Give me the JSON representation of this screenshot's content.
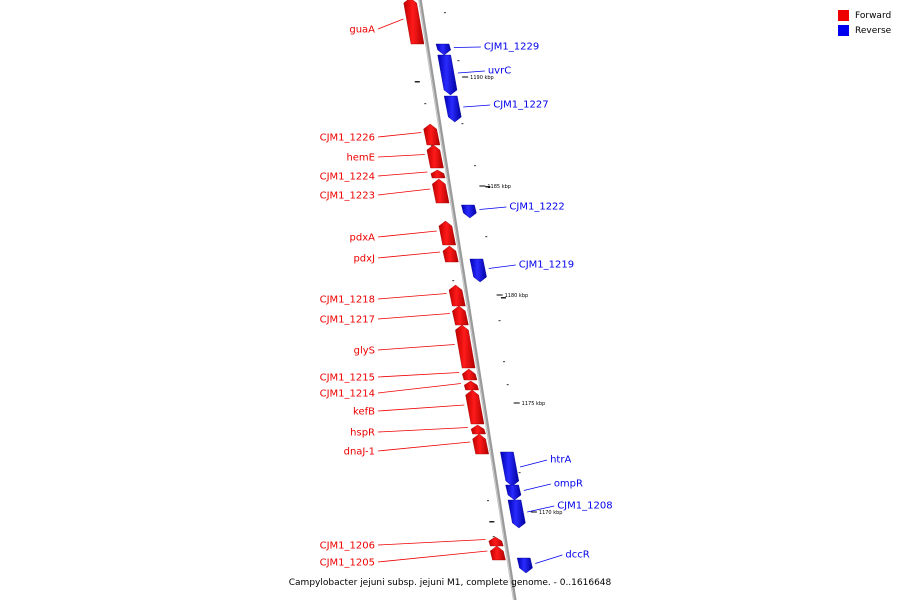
{
  "colors": {
    "forward": "#ee0000",
    "reverse": "#0000ee",
    "axis": "#999999"
  },
  "legend": [
    {
      "label": "Forward",
      "color": "#ee0000"
    },
    {
      "label": "Reverse",
      "color": "#0000ee"
    }
  ],
  "caption": "Campylobacter jejuni subsp. jejuni M1, complete genome. - 0..1616648",
  "ticks": [
    "1190 kbp",
    "1185 kbp",
    "1180 kbp",
    "1175 kbp",
    "1170 kbp"
  ],
  "genes": [
    {
      "name": "guaA",
      "strand": "forward"
    },
    {
      "name": "CJM1_1229",
      "strand": "reverse"
    },
    {
      "name": "uvrC",
      "strand": "reverse"
    },
    {
      "name": "CJM1_1227",
      "strand": "reverse"
    },
    {
      "name": "CJM1_1226",
      "strand": "forward"
    },
    {
      "name": "hemE",
      "strand": "forward"
    },
    {
      "name": "CJM1_1224",
      "strand": "forward"
    },
    {
      "name": "CJM1_1223",
      "strand": "forward"
    },
    {
      "name": "CJM1_1222",
      "strand": "reverse"
    },
    {
      "name": "pdxA",
      "strand": "forward"
    },
    {
      "name": "pdxJ",
      "strand": "forward"
    },
    {
      "name": "CJM1_1219",
      "strand": "reverse"
    },
    {
      "name": "CJM1_1218",
      "strand": "forward"
    },
    {
      "name": "CJM1_1217",
      "strand": "forward"
    },
    {
      "name": "glyS",
      "strand": "forward"
    },
    {
      "name": "CJM1_1215",
      "strand": "forward"
    },
    {
      "name": "CJM1_1214",
      "strand": "forward"
    },
    {
      "name": "kefB",
      "strand": "forward"
    },
    {
      "name": "hspR",
      "strand": "forward"
    },
    {
      "name": "dnaJ-1",
      "strand": "forward"
    },
    {
      "name": "htrA",
      "strand": "reverse"
    },
    {
      "name": "ompR",
      "strand": "reverse"
    },
    {
      "name": "CJM1_1208",
      "strand": "reverse"
    },
    {
      "name": "CJM1_1206",
      "strand": "forward"
    },
    {
      "name": "CJM1_1205",
      "strand": "forward"
    },
    {
      "name": "dccR",
      "strand": "reverse"
    }
  ]
}
